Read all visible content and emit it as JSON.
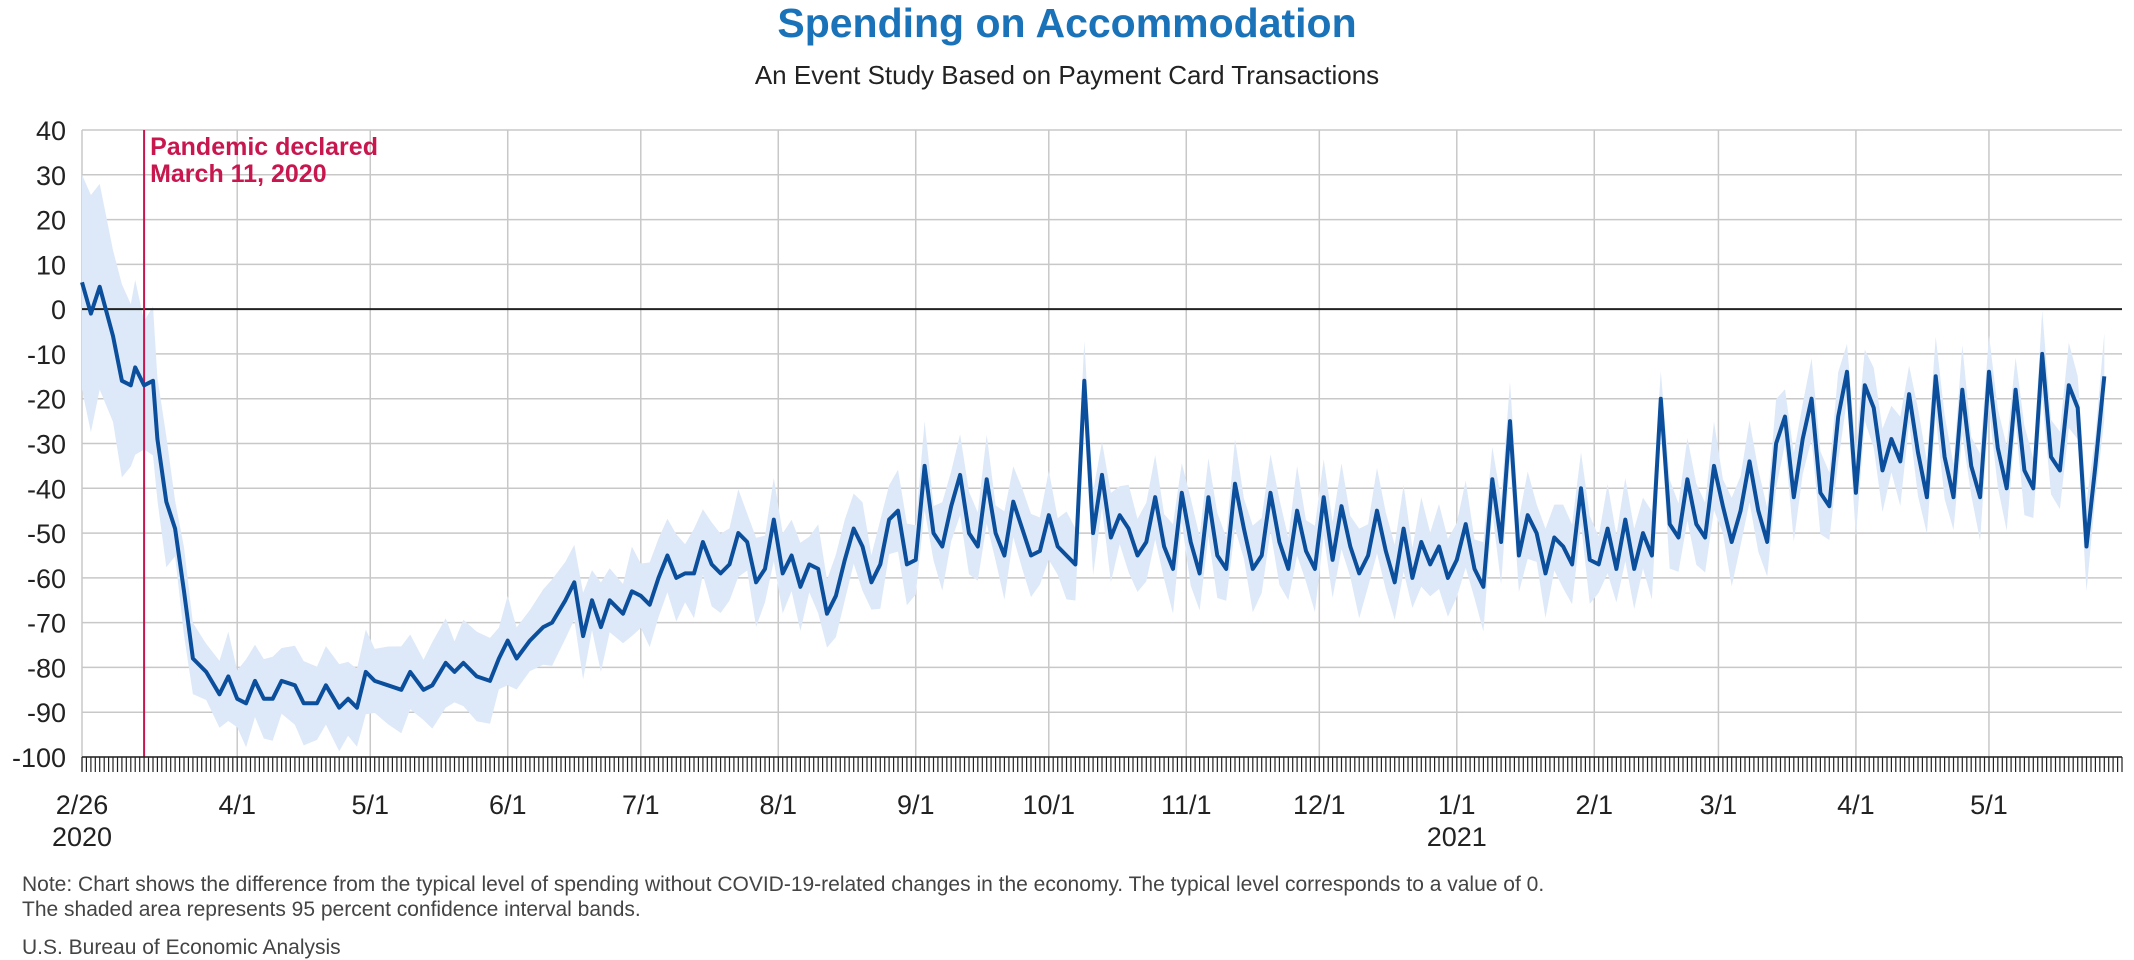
{
  "chart_data": {
    "type": "line",
    "title": "Spending on Accommodation",
    "subtitle": "An Event Study Based on Payment Card Transactions",
    "xlabel": "",
    "ylabel": "",
    "ylim": [
      -100,
      40
    ],
    "yticks": [
      40,
      30,
      20,
      10,
      0,
      -10,
      -20,
      -30,
      -40,
      -50,
      -60,
      -70,
      -80,
      -90,
      -100
    ],
    "x_start": "2020-02-26",
    "x_end": "2021-05-31",
    "x_ticks": [
      {
        "date": "2020-02-26",
        "label": "2/26",
        "sublabel": "2020"
      },
      {
        "date": "2020-04-01",
        "label": "4/1",
        "sublabel": ""
      },
      {
        "date": "2020-05-01",
        "label": "5/1",
        "sublabel": ""
      },
      {
        "date": "2020-06-01",
        "label": "6/1",
        "sublabel": ""
      },
      {
        "date": "2020-07-01",
        "label": "7/1",
        "sublabel": ""
      },
      {
        "date": "2020-08-01",
        "label": "8/1",
        "sublabel": ""
      },
      {
        "date": "2020-09-01",
        "label": "9/1",
        "sublabel": ""
      },
      {
        "date": "2020-10-01",
        "label": "10/1",
        "sublabel": ""
      },
      {
        "date": "2020-11-01",
        "label": "11/1",
        "sublabel": ""
      },
      {
        "date": "2020-12-01",
        "label": "12/1",
        "sublabel": ""
      },
      {
        "date": "2021-01-01",
        "label": "1/1",
        "sublabel": "2021"
      },
      {
        "date": "2021-02-01",
        "label": "2/1",
        "sublabel": ""
      },
      {
        "date": "2021-03-01",
        "label": "3/1",
        "sublabel": ""
      },
      {
        "date": "2021-04-01",
        "label": "4/1",
        "sublabel": ""
      },
      {
        "date": "2021-05-01",
        "label": "5/1",
        "sublabel": ""
      }
    ],
    "grid": true,
    "zero_line": true,
    "colors": {
      "line": "#0b4f9c",
      "band": "#dde9f8",
      "event": "#c8174f",
      "title": "#1a73b9",
      "grid": "#c8c8c8"
    },
    "event": {
      "date": "2020-03-11",
      "label_line1": "Pandemic declared",
      "label_line2": "March 11, 2020"
    },
    "series": [
      {
        "band_width": "95 percent confidence interval",
        "points": [
          [
            "2020-02-26",
            6
          ],
          [
            "2020-02-28",
            -1
          ],
          [
            "2020-03-01",
            5
          ],
          [
            "2020-03-04",
            -6
          ],
          [
            "2020-03-06",
            -16
          ],
          [
            "2020-03-08",
            -17
          ],
          [
            "2020-03-09",
            -13
          ],
          [
            "2020-03-11",
            -17
          ],
          [
            "2020-03-13",
            -16
          ],
          [
            "2020-03-14",
            -29
          ],
          [
            "2020-03-16",
            -43
          ],
          [
            "2020-03-18",
            -49
          ],
          [
            "2020-03-20",
            -63
          ],
          [
            "2020-03-22",
            -78
          ],
          [
            "2020-03-25",
            -81
          ],
          [
            "2020-03-28",
            -86
          ],
          [
            "2020-03-30",
            -82
          ],
          [
            "2020-04-01",
            -87
          ],
          [
            "2020-04-03",
            -88
          ],
          [
            "2020-04-05",
            -83
          ],
          [
            "2020-04-07",
            -87
          ],
          [
            "2020-04-09",
            -87
          ],
          [
            "2020-04-11",
            -83
          ],
          [
            "2020-04-14",
            -84
          ],
          [
            "2020-04-16",
            -88
          ],
          [
            "2020-04-19",
            -88
          ],
          [
            "2020-04-21",
            -84
          ],
          [
            "2020-04-24",
            -89
          ],
          [
            "2020-04-26",
            -87
          ],
          [
            "2020-04-28",
            -89
          ],
          [
            "2020-04-30",
            -81
          ],
          [
            "2020-05-02",
            -83
          ],
          [
            "2020-05-05",
            -84
          ],
          [
            "2020-05-08",
            -85
          ],
          [
            "2020-05-10",
            -81
          ],
          [
            "2020-05-13",
            -85
          ],
          [
            "2020-05-15",
            -84
          ],
          [
            "2020-05-18",
            -79
          ],
          [
            "2020-05-20",
            -81
          ],
          [
            "2020-05-22",
            -79
          ],
          [
            "2020-05-25",
            -82
          ],
          [
            "2020-05-28",
            -83
          ],
          [
            "2020-05-30",
            -78
          ],
          [
            "2020-06-01",
            -74
          ],
          [
            "2020-06-03",
            -78
          ],
          [
            "2020-06-06",
            -74
          ],
          [
            "2020-06-09",
            -71
          ],
          [
            "2020-06-11",
            -70
          ],
          [
            "2020-06-14",
            -65
          ],
          [
            "2020-06-16",
            -61
          ],
          [
            "2020-06-18",
            -73
          ],
          [
            "2020-06-20",
            -65
          ],
          [
            "2020-06-22",
            -71
          ],
          [
            "2020-06-24",
            -65
          ],
          [
            "2020-06-27",
            -68
          ],
          [
            "2020-06-29",
            -63
          ],
          [
            "2020-07-01",
            -64
          ],
          [
            "2020-07-03",
            -66
          ],
          [
            "2020-07-05",
            -60
          ],
          [
            "2020-07-07",
            -55
          ],
          [
            "2020-07-09",
            -60
          ],
          [
            "2020-07-11",
            -59
          ],
          [
            "2020-07-13",
            -59
          ],
          [
            "2020-07-15",
            -52
          ],
          [
            "2020-07-17",
            -57
          ],
          [
            "2020-07-19",
            -59
          ],
          [
            "2020-07-21",
            -57
          ],
          [
            "2020-07-23",
            -50
          ],
          [
            "2020-07-25",
            -52
          ],
          [
            "2020-07-27",
            -61
          ],
          [
            "2020-07-29",
            -58
          ],
          [
            "2020-07-31",
            -47
          ],
          [
            "2020-08-02",
            -59
          ],
          [
            "2020-08-04",
            -55
          ],
          [
            "2020-08-06",
            -62
          ],
          [
            "2020-08-08",
            -57
          ],
          [
            "2020-08-10",
            -58
          ],
          [
            "2020-08-12",
            -68
          ],
          [
            "2020-08-14",
            -64
          ],
          [
            "2020-08-16",
            -56
          ],
          [
            "2020-08-18",
            -49
          ],
          [
            "2020-08-20",
            -53
          ],
          [
            "2020-08-22",
            -61
          ],
          [
            "2020-08-24",
            -57
          ],
          [
            "2020-08-26",
            -47
          ],
          [
            "2020-08-28",
            -45
          ],
          [
            "2020-08-30",
            -57
          ],
          [
            "2020-09-01",
            -56
          ],
          [
            "2020-09-03",
            -35
          ],
          [
            "2020-09-05",
            -50
          ],
          [
            "2020-09-07",
            -53
          ],
          [
            "2020-09-09",
            -44
          ],
          [
            "2020-09-11",
            -37
          ],
          [
            "2020-09-13",
            -50
          ],
          [
            "2020-09-15",
            -53
          ],
          [
            "2020-09-17",
            -38
          ],
          [
            "2020-09-19",
            -50
          ],
          [
            "2020-09-21",
            -55
          ],
          [
            "2020-09-23",
            -43
          ],
          [
            "2020-09-25",
            -49
          ],
          [
            "2020-09-27",
            -55
          ],
          [
            "2020-09-29",
            -54
          ],
          [
            "2020-10-01",
            -46
          ],
          [
            "2020-10-03",
            -53
          ],
          [
            "2020-10-05",
            -55
          ],
          [
            "2020-10-07",
            -57
          ],
          [
            "2020-10-09",
            -16
          ],
          [
            "2020-10-11",
            -50
          ],
          [
            "2020-10-13",
            -37
          ],
          [
            "2020-10-15",
            -51
          ],
          [
            "2020-10-17",
            -46
          ],
          [
            "2020-10-19",
            -49
          ],
          [
            "2020-10-21",
            -55
          ],
          [
            "2020-10-23",
            -52
          ],
          [
            "2020-10-25",
            -42
          ],
          [
            "2020-10-27",
            -53
          ],
          [
            "2020-10-29",
            -58
          ],
          [
            "2020-10-31",
            -41
          ],
          [
            "2020-11-02",
            -52
          ],
          [
            "2020-11-04",
            -59
          ],
          [
            "2020-11-06",
            -42
          ],
          [
            "2020-11-08",
            -55
          ],
          [
            "2020-11-10",
            -58
          ],
          [
            "2020-11-12",
            -39
          ],
          [
            "2020-11-14",
            -49
          ],
          [
            "2020-11-16",
            -58
          ],
          [
            "2020-11-18",
            -55
          ],
          [
            "2020-11-20",
            -41
          ],
          [
            "2020-11-22",
            -52
          ],
          [
            "2020-11-24",
            -58
          ],
          [
            "2020-11-26",
            -45
          ],
          [
            "2020-11-28",
            -54
          ],
          [
            "2020-11-30",
            -58
          ],
          [
            "2020-12-02",
            -42
          ],
          [
            "2020-12-04",
            -56
          ],
          [
            "2020-12-06",
            -44
          ],
          [
            "2020-12-08",
            -53
          ],
          [
            "2020-12-10",
            -59
          ],
          [
            "2020-12-12",
            -55
          ],
          [
            "2020-12-14",
            -45
          ],
          [
            "2020-12-16",
            -54
          ],
          [
            "2020-12-18",
            -61
          ],
          [
            "2020-12-20",
            -49
          ],
          [
            "2020-12-22",
            -60
          ],
          [
            "2020-12-24",
            -52
          ],
          [
            "2020-12-26",
            -57
          ],
          [
            "2020-12-28",
            -53
          ],
          [
            "2020-12-30",
            -60
          ],
          [
            "2021-01-01",
            -56
          ],
          [
            "2021-01-03",
            -48
          ],
          [
            "2021-01-05",
            -58
          ],
          [
            "2021-01-07",
            -62
          ],
          [
            "2021-01-09",
            -38
          ],
          [
            "2021-01-11",
            -52
          ],
          [
            "2021-01-13",
            -25
          ],
          [
            "2021-01-15",
            -55
          ],
          [
            "2021-01-17",
            -46
          ],
          [
            "2021-01-19",
            -50
          ],
          [
            "2021-01-21",
            -59
          ],
          [
            "2021-01-23",
            -51
          ],
          [
            "2021-01-25",
            -53
          ],
          [
            "2021-01-27",
            -57
          ],
          [
            "2021-01-29",
            -40
          ],
          [
            "2021-01-31",
            -56
          ],
          [
            "2021-02-02",
            -57
          ],
          [
            "2021-02-04",
            -49
          ],
          [
            "2021-02-06",
            -58
          ],
          [
            "2021-02-08",
            -47
          ],
          [
            "2021-02-10",
            -58
          ],
          [
            "2021-02-12",
            -50
          ],
          [
            "2021-02-14",
            -55
          ],
          [
            "2021-02-16",
            -20
          ],
          [
            "2021-02-18",
            -48
          ],
          [
            "2021-02-20",
            -51
          ],
          [
            "2021-02-22",
            -38
          ],
          [
            "2021-02-24",
            -48
          ],
          [
            "2021-02-26",
            -51
          ],
          [
            "2021-02-28",
            -35
          ],
          [
            "2021-03-02",
            -44
          ],
          [
            "2021-03-04",
            -52
          ],
          [
            "2021-03-06",
            -45
          ],
          [
            "2021-03-08",
            -34
          ],
          [
            "2021-03-10",
            -45
          ],
          [
            "2021-03-12",
            -52
          ],
          [
            "2021-03-14",
            -30
          ],
          [
            "2021-03-16",
            -24
          ],
          [
            "2021-03-18",
            -42
          ],
          [
            "2021-03-20",
            -29
          ],
          [
            "2021-03-22",
            -20
          ],
          [
            "2021-03-24",
            -41
          ],
          [
            "2021-03-26",
            -44
          ],
          [
            "2021-03-28",
            -24
          ],
          [
            "2021-03-30",
            -14
          ],
          [
            "2021-04-01",
            -41
          ],
          [
            "2021-04-03",
            -17
          ],
          [
            "2021-04-05",
            -22
          ],
          [
            "2021-04-07",
            -36
          ],
          [
            "2021-04-09",
            -29
          ],
          [
            "2021-04-11",
            -34
          ],
          [
            "2021-04-13",
            -19
          ],
          [
            "2021-04-15",
            -32
          ],
          [
            "2021-04-17",
            -42
          ],
          [
            "2021-04-19",
            -15
          ],
          [
            "2021-04-21",
            -33
          ],
          [
            "2021-04-23",
            -42
          ],
          [
            "2021-04-25",
            -18
          ],
          [
            "2021-04-27",
            -35
          ],
          [
            "2021-04-29",
            -42
          ],
          [
            "2021-05-01",
            -14
          ],
          [
            "2021-05-03",
            -31
          ],
          [
            "2021-05-05",
            -40
          ],
          [
            "2021-05-07",
            -18
          ],
          [
            "2021-05-09",
            -36
          ],
          [
            "2021-05-11",
            -40
          ],
          [
            "2021-05-13",
            -10
          ],
          [
            "2021-05-15",
            -33
          ],
          [
            "2021-05-17",
            -36
          ],
          [
            "2021-05-19",
            -17
          ],
          [
            "2021-05-21",
            -22
          ],
          [
            "2021-05-23",
            -53
          ],
          [
            "2021-05-25",
            -35
          ],
          [
            "2021-05-27",
            -15
          ]
        ]
      }
    ]
  },
  "note": {
    "line1": "Note: Chart shows the difference from the typical level of spending without COVID-19-related changes in the economy. The typical level corresponds to a value of 0.",
    "line2": "The shaded area represents 95 percent confidence interval bands."
  },
  "source": "U.S. Bureau of Economic Analysis"
}
